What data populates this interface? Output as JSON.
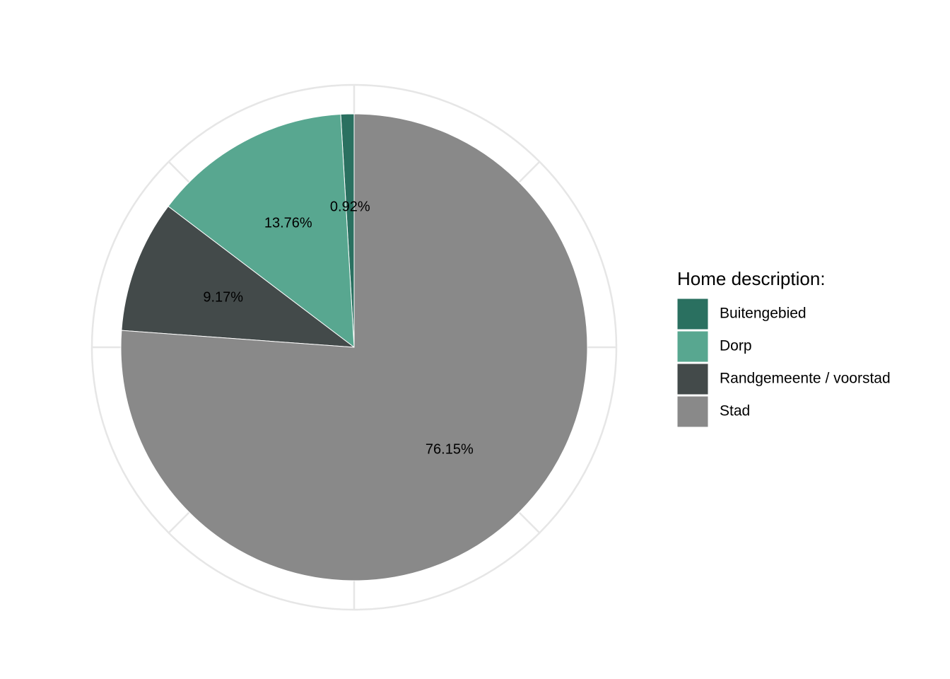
{
  "chart_data": {
    "type": "pie",
    "legend_title": "Home description:",
    "legend_position": "right",
    "grid": true,
    "slices": [
      {
        "label": "Buitengebied",
        "value": 0.92,
        "value_label": "0.92%",
        "color": "#2a7060"
      },
      {
        "label": "Dorp",
        "value": 13.76,
        "value_label": "13.76%",
        "color": "#58a790"
      },
      {
        "label": "Randgemeente / voorstad",
        "value": 9.17,
        "value_label": "9.17%",
        "color": "#434a4a"
      },
      {
        "label": "Stad",
        "value": 76.15,
        "value_label": "76.15%",
        "color": "#898989"
      }
    ]
  }
}
